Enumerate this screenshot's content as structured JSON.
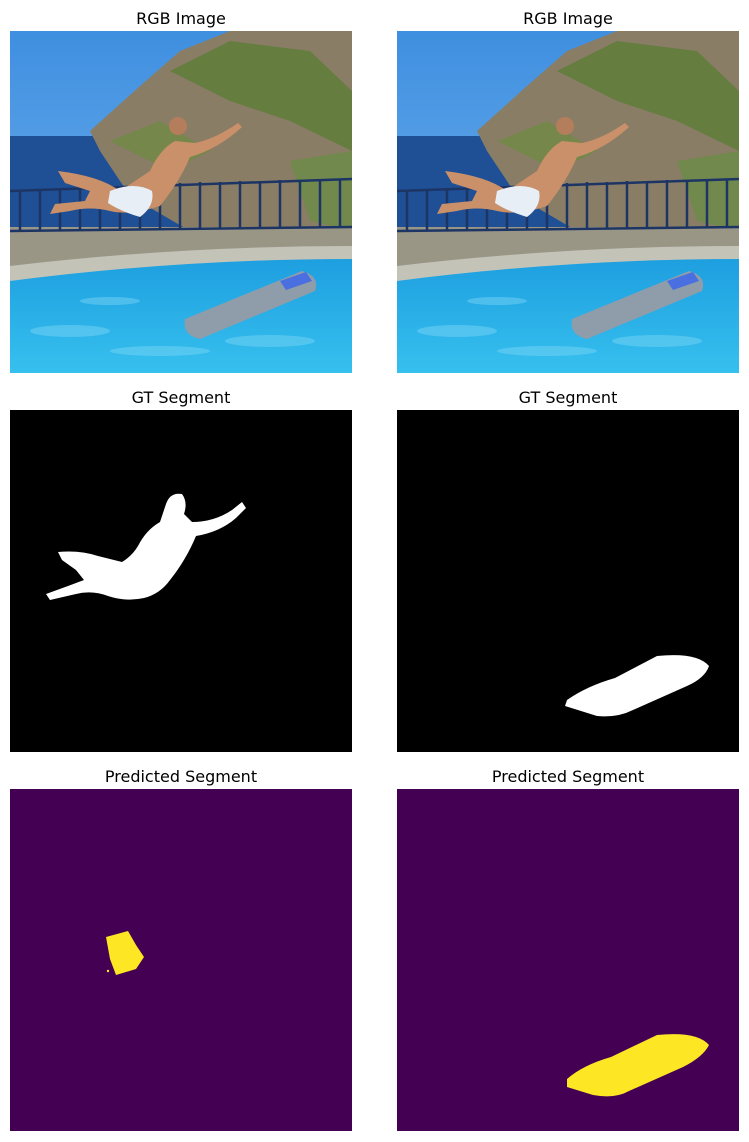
{
  "panels": [
    {
      "title": "RGB Image",
      "kind": "rgb",
      "object": "person"
    },
    {
      "title": "RGB Image",
      "kind": "rgb",
      "object": "mattress"
    },
    {
      "title": "GT Segment",
      "kind": "gt",
      "object": "person"
    },
    {
      "title": "GT Segment",
      "kind": "gt",
      "object": "mattress"
    },
    {
      "title": "Predicted Segment",
      "kind": "pred",
      "object": "person"
    },
    {
      "title": "Predicted Segment",
      "kind": "pred",
      "object": "mattress"
    }
  ],
  "colors": {
    "mask_background": "#000000",
    "mask_foreground": "#ffffff",
    "pred_background": "#440154",
    "pred_foreground": "#fde725"
  }
}
